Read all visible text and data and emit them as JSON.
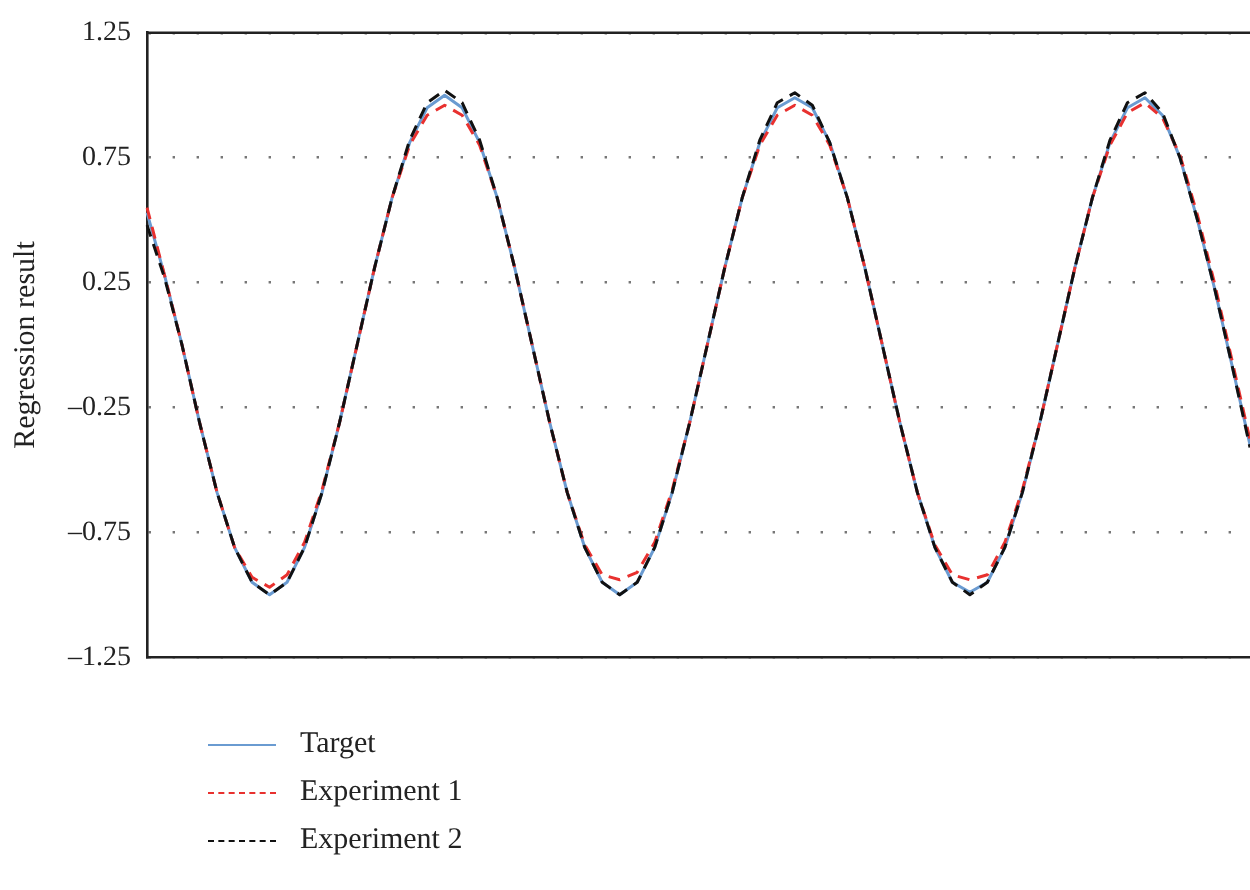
{
  "chart_data": {
    "type": "line",
    "ylabel": "Regression result",
    "categories": [
      null,
      null,
      null,
      null,
      null,
      null,
      null,
      null,
      null,
      null,
      null,
      null,
      null,
      null,
      null,
      null,
      null,
      null,
      null,
      null,
      null,
      null,
      null,
      null,
      null,
      null,
      null,
      null,
      null,
      null,
      null,
      null,
      null,
      null,
      null,
      null,
      null,
      null,
      null,
      null,
      null,
      null,
      null,
      null,
      null,
      null,
      null,
      null,
      null,
      null,
      null,
      null,
      null,
      null,
      null,
      null,
      null,
      null,
      null,
      null,
      null,
      null,
      null,
      null
    ],
    "series": [
      {
        "name": "Target",
        "color": "#6a9bd1",
        "line_style": "solid",
        "values": [
          0.53,
          0.28,
          0,
          -0.31,
          -0.59,
          -0.81,
          -0.95,
          -1.0,
          -0.95,
          -0.81,
          -0.59,
          -0.31,
          0,
          0.31,
          0.59,
          0.81,
          0.95,
          1.0,
          0.95,
          0.81,
          0.59,
          0.31,
          0,
          -0.31,
          -0.59,
          -0.81,
          -0.95,
          -1.0,
          -0.95,
          -0.81,
          -0.59,
          -0.31,
          0,
          0.31,
          0.59,
          0.81,
          0.95,
          0.99,
          0.95,
          0.81,
          0.59,
          0.31,
          0,
          -0.31,
          -0.59,
          -0.81,
          -0.95,
          -0.99,
          -0.95,
          -0.81,
          -0.59,
          -0.31,
          0,
          0.31,
          0.59,
          0.81,
          0.95,
          0.99,
          0.92,
          0.75,
          0.5,
          0.22,
          -0.09,
          -0.4
        ]
      },
      {
        "name": "Experiment 1",
        "color": "#e8312f",
        "line_style": "dashed",
        "values": [
          0.55,
          0.28,
          0,
          -0.31,
          -0.59,
          -0.81,
          -0.93,
          -0.97,
          -0.92,
          -0.79,
          -0.58,
          -0.31,
          0,
          0.31,
          0.59,
          0.8,
          0.92,
          0.96,
          0.92,
          0.8,
          0.59,
          0.31,
          0,
          -0.31,
          -0.59,
          -0.8,
          -0.92,
          -0.94,
          -0.91,
          -0.79,
          -0.58,
          -0.31,
          0,
          0.31,
          0.59,
          0.8,
          0.92,
          0.96,
          0.92,
          0.8,
          0.59,
          0.31,
          0,
          -0.31,
          -0.59,
          -0.8,
          -0.92,
          -0.94,
          -0.92,
          -0.79,
          -0.58,
          -0.31,
          0,
          0.31,
          0.59,
          0.8,
          0.93,
          0.97,
          0.91,
          0.76,
          0.52,
          0.24,
          -0.07,
          -0.38
        ]
      },
      {
        "name": "Experiment 2",
        "color": "#111111",
        "line_style": "dashed",
        "values": [
          0.48,
          0.27,
          0,
          -0.31,
          -0.59,
          -0.81,
          -0.95,
          -1.0,
          -0.95,
          -0.81,
          -0.59,
          -0.31,
          0,
          0.31,
          0.59,
          0.82,
          0.97,
          1.02,
          0.97,
          0.82,
          0.59,
          0.31,
          0,
          -0.31,
          -0.59,
          -0.81,
          -0.95,
          -1.0,
          -0.95,
          -0.81,
          -0.59,
          -0.31,
          0,
          0.31,
          0.59,
          0.82,
          0.97,
          1.01,
          0.96,
          0.81,
          0.59,
          0.31,
          0,
          -0.31,
          -0.59,
          -0.81,
          -0.95,
          -1.0,
          -0.95,
          -0.81,
          -0.59,
          -0.31,
          0,
          0.31,
          0.59,
          0.82,
          0.97,
          1.01,
          0.93,
          0.75,
          0.5,
          0.22,
          -0.09,
          -0.41
        ]
      }
    ],
    "ylim": [
      -1.25,
      1.25
    ],
    "yticks": [
      {
        "value": -1.25,
        "label": "–1.25"
      },
      {
        "value": -0.75,
        "label": "–0.75"
      },
      {
        "value": -0.25,
        "label": "–0.25"
      },
      0.25,
      0.75,
      1.25
    ],
    "grid": "y",
    "legend": "bottom left",
    "tick_labels": "y",
    "marker": "none"
  }
}
